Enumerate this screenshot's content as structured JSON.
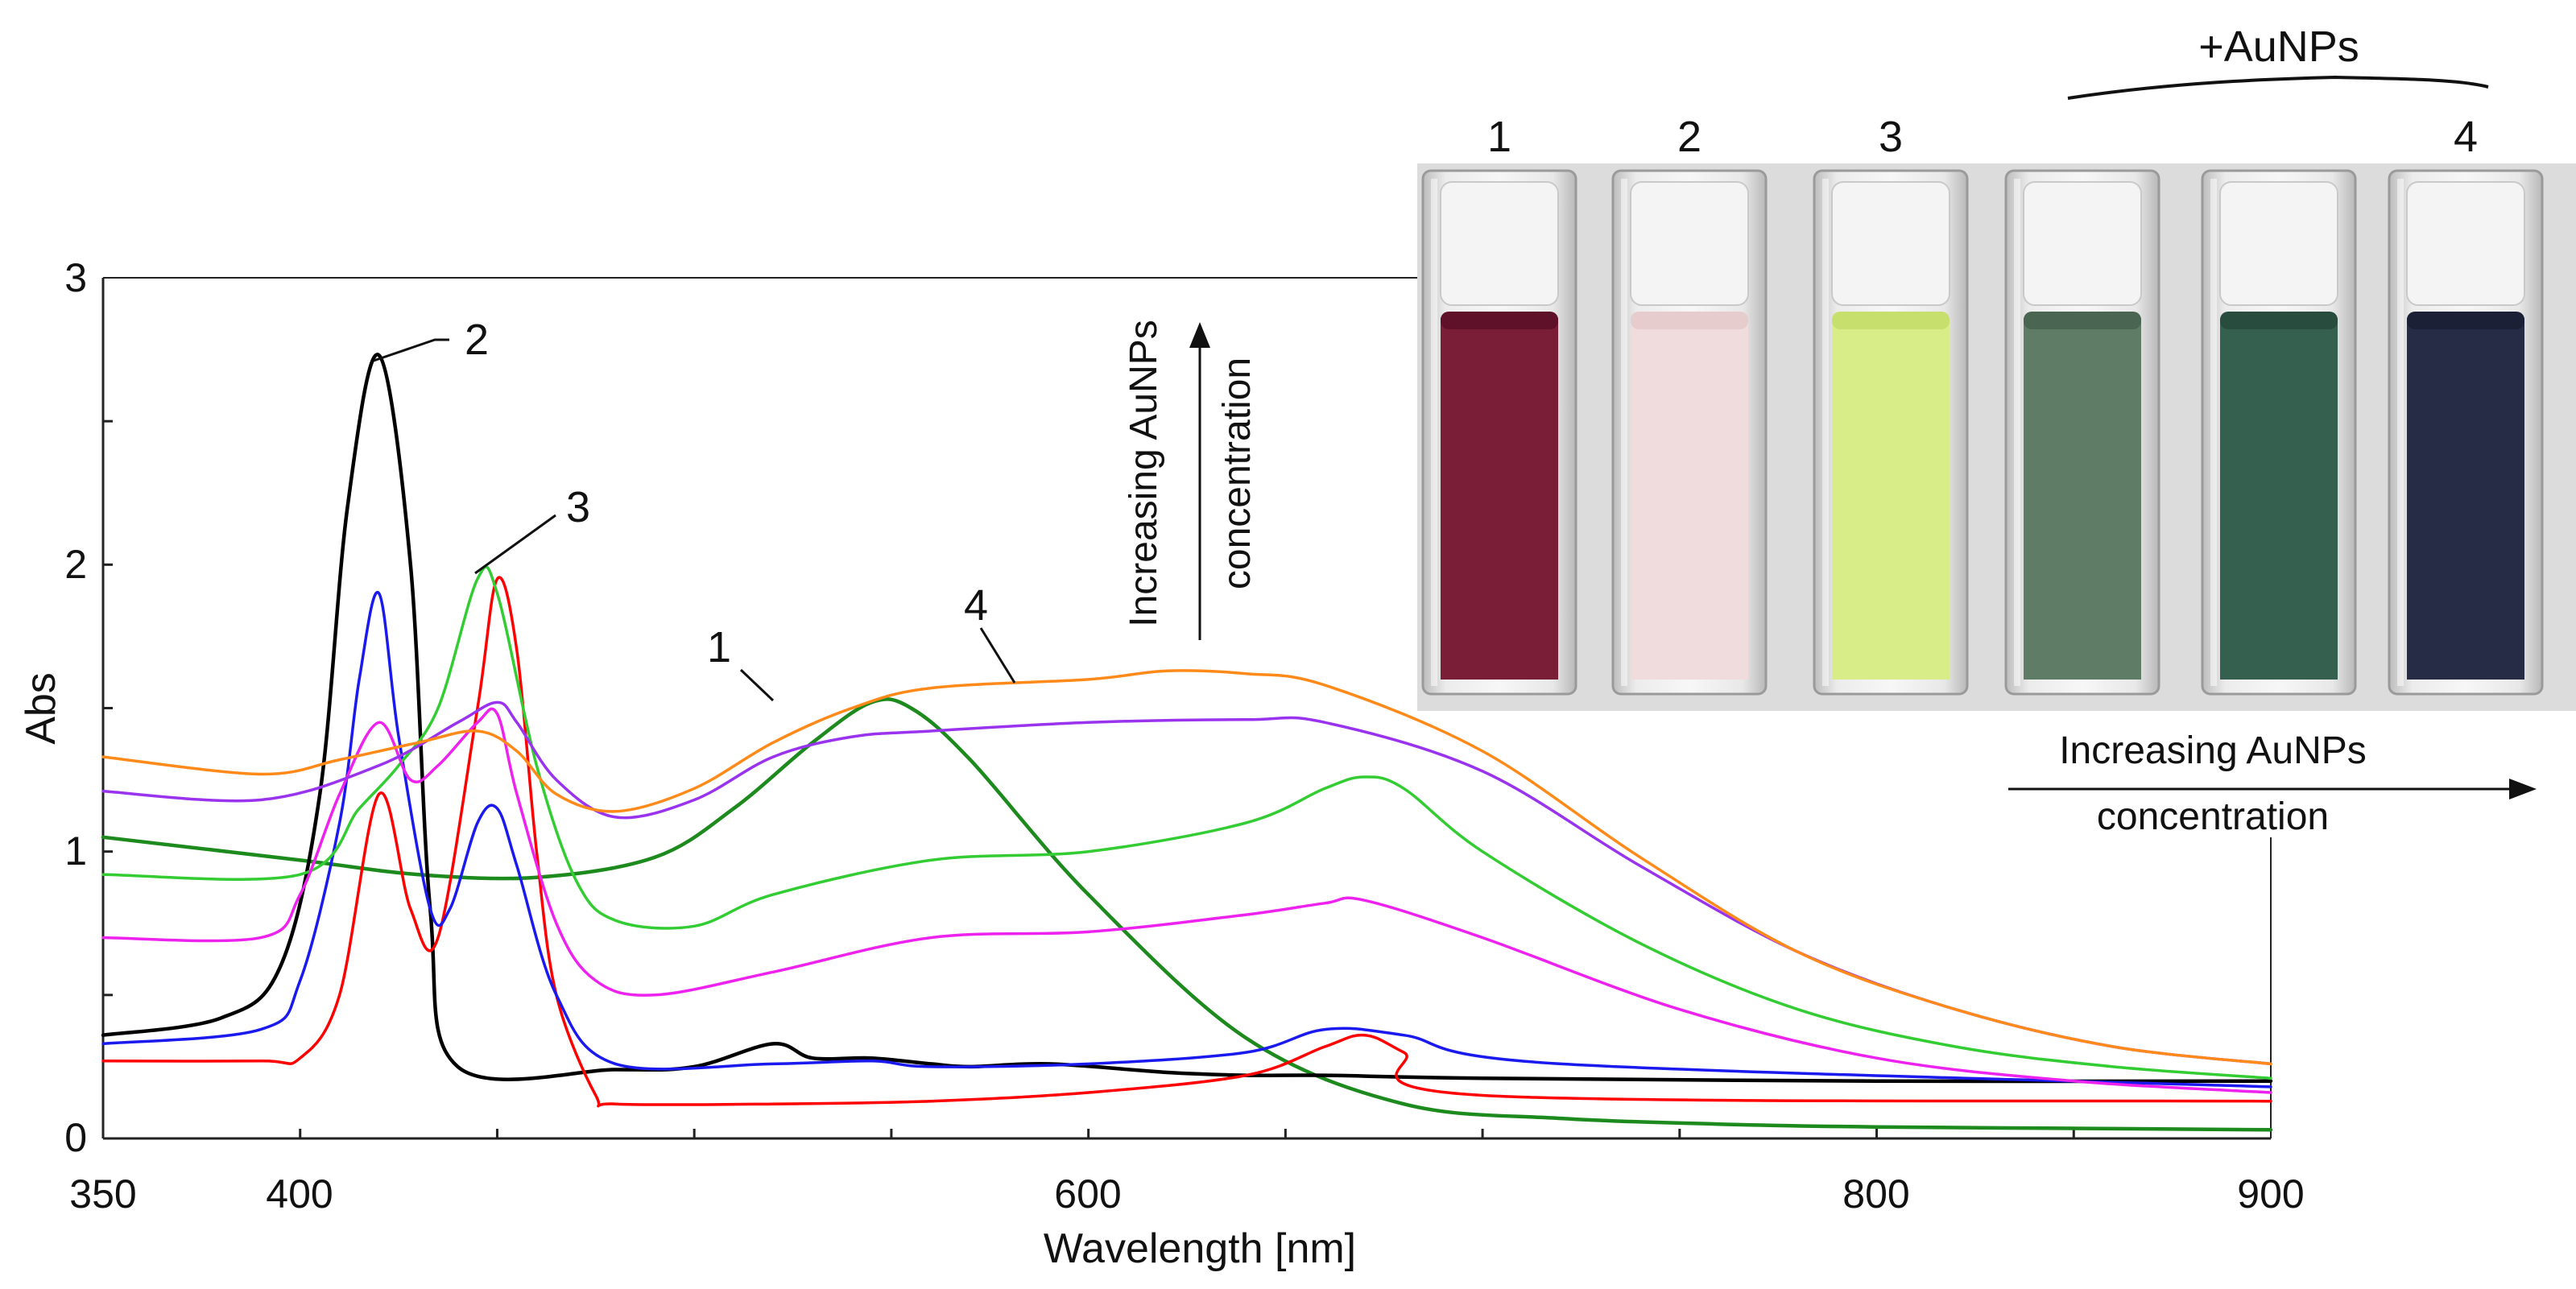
{
  "chart_data": {
    "type": "line",
    "xlabel": "Wavelength [nm]",
    "ylabel": "Abs",
    "xlim": [
      350,
      900
    ],
    "ylim": [
      0,
      3
    ],
    "xticks": [
      350,
      400,
      600,
      800,
      900
    ],
    "yticks": [
      0,
      1,
      2,
      3
    ],
    "series": [
      {
        "name": "1",
        "color": "#1d8a1d",
        "width": 4.5,
        "x": [
          350,
          400,
          430,
          460,
          490,
          510,
          530,
          545,
          555,
          570,
          600,
          640,
          680,
          720,
          760,
          800,
          850,
          900
        ],
        "y": [
          1.05,
          0.97,
          0.92,
          0.91,
          0.98,
          1.15,
          1.38,
          1.52,
          1.5,
          1.32,
          0.85,
          0.35,
          0.12,
          0.07,
          0.05,
          0.04,
          0.035,
          0.03
        ]
      },
      {
        "name": "2",
        "color": "#000000",
        "width": 4.5,
        "x": [
          350,
          380,
          395,
          405,
          412,
          420,
          428,
          433,
          440,
          480,
          500,
          520,
          530,
          545,
          560,
          570,
          590,
          620,
          640,
          660,
          700,
          800,
          900
        ],
        "y": [
          0.36,
          0.42,
          0.6,
          1.2,
          2.2,
          2.73,
          2.0,
          0.8,
          0.25,
          0.24,
          0.25,
          0.33,
          0.28,
          0.28,
          0.26,
          0.25,
          0.26,
          0.23,
          0.22,
          0.22,
          0.21,
          0.2,
          0.2
        ]
      },
      {
        "name": "3",
        "color": "#ff0000",
        "width": 3.5,
        "x": [
          350,
          390,
          400,
          410,
          420,
          428,
          435,
          445,
          450,
          455,
          460,
          465,
          475,
          480,
          520,
          560,
          600,
          640,
          660,
          670,
          680,
          700,
          900
        ],
        "y": [
          0.27,
          0.27,
          0.28,
          0.5,
          1.2,
          0.8,
          0.7,
          1.5,
          1.95,
          1.7,
          1.0,
          0.5,
          0.15,
          0.12,
          0.12,
          0.13,
          0.16,
          0.22,
          0.32,
          0.36,
          0.3,
          0.15,
          0.13
        ]
      },
      {
        "name": "blue",
        "color": "#1a1aee",
        "width": 3.5,
        "x": [
          350,
          390,
          400,
          410,
          415,
          420,
          425,
          433,
          438,
          445,
          450,
          455,
          465,
          480,
          520,
          545,
          560,
          600,
          640,
          660,
          680,
          720,
          900
        ],
        "y": [
          0.33,
          0.38,
          0.55,
          1.1,
          1.6,
          1.9,
          1.4,
          0.8,
          0.8,
          1.1,
          1.15,
          0.95,
          0.5,
          0.26,
          0.26,
          0.27,
          0.25,
          0.26,
          0.3,
          0.38,
          0.36,
          0.26,
          0.18
        ]
      },
      {
        "name": "green-thin",
        "color": "#33cc33",
        "width": 3.5,
        "x": [
          350,
          400,
          415,
          425,
          435,
          445,
          450,
          460,
          470,
          480,
          500,
          520,
          560,
          600,
          640,
          660,
          670,
          680,
          700,
          740,
          780,
          820,
          860,
          900
        ],
        "y": [
          0.92,
          0.92,
          1.15,
          1.3,
          1.5,
          1.95,
          1.9,
          1.3,
          0.9,
          0.76,
          0.74,
          0.85,
          0.97,
          1.0,
          1.1,
          1.22,
          1.26,
          1.22,
          1.0,
          0.68,
          0.45,
          0.32,
          0.25,
          0.21
        ]
      },
      {
        "name": "magenta",
        "color": "#ee22ee",
        "width": 3.5,
        "x": [
          350,
          390,
          400,
          410,
          420,
          428,
          435,
          445,
          450,
          455,
          465,
          475,
          490,
          520,
          560,
          600,
          640,
          660,
          670,
          700,
          750,
          800,
          850,
          900
        ],
        "y": [
          0.7,
          0.7,
          0.85,
          1.2,
          1.45,
          1.25,
          1.3,
          1.45,
          1.48,
          1.2,
          0.75,
          0.55,
          0.5,
          0.58,
          0.7,
          0.72,
          0.78,
          0.82,
          0.83,
          0.7,
          0.45,
          0.28,
          0.2,
          0.16
        ]
      },
      {
        "name": "purple",
        "color": "#9933ee",
        "width": 3.5,
        "x": [
          350,
          390,
          420,
          440,
          450,
          455,
          465,
          480,
          500,
          520,
          540,
          560,
          600,
          640,
          660,
          700,
          740,
          780,
          820,
          860,
          900
        ],
        "y": [
          1.21,
          1.18,
          1.3,
          1.45,
          1.52,
          1.45,
          1.25,
          1.12,
          1.18,
          1.33,
          1.4,
          1.42,
          1.45,
          1.46,
          1.45,
          1.28,
          0.95,
          0.65,
          0.45,
          0.32,
          0.26
        ]
      },
      {
        "name": "4",
        "color": "#ff8a1a",
        "width": 3.5,
        "x": [
          350,
          390,
          410,
          430,
          445,
          455,
          465,
          480,
          500,
          520,
          540,
          560,
          600,
          620,
          640,
          660,
          700,
          740,
          780,
          820,
          860,
          900
        ],
        "y": [
          1.33,
          1.27,
          1.32,
          1.38,
          1.42,
          1.35,
          1.2,
          1.14,
          1.22,
          1.38,
          1.5,
          1.57,
          1.6,
          1.63,
          1.62,
          1.58,
          1.35,
          0.98,
          0.65,
          0.45,
          0.32,
          0.26
        ]
      }
    ],
    "annotations": [
      {
        "text": "1",
        "x": 532,
        "y": 1.5
      },
      {
        "text": "2",
        "x": 420,
        "y": 2.73
      },
      {
        "text": "3",
        "x": 450,
        "y": 1.95
      },
      {
        "text": "4",
        "x": 590,
        "y": 1.6
      }
    ],
    "side_note_vertical": [
      "Increasing AuNPs",
      "concentration"
    ],
    "side_note_horizontal": [
      "Increasing AuNPs",
      "concentration"
    ]
  },
  "photo": {
    "bracket_label": "+AuNPs",
    "cuvettes": [
      {
        "label": "1",
        "liquid": "#7a1e38",
        "liquid_dark": "#5e1128"
      },
      {
        "label": "2",
        "liquid": "#f0dcdc",
        "liquid_dark": "#e6cccc"
      },
      {
        "label": "3",
        "liquid": "#d8ec88",
        "liquid_dark": "#c7df6c"
      },
      {
        "label": "",
        "liquid": "#5e7c66",
        "liquid_dark": "#4a6652"
      },
      {
        "label": "",
        "liquid": "#35604f",
        "liquid_dark": "#284d3f"
      },
      {
        "label": "4",
        "liquid": "#262c46",
        "liquid_dark": "#1b2036"
      }
    ]
  }
}
